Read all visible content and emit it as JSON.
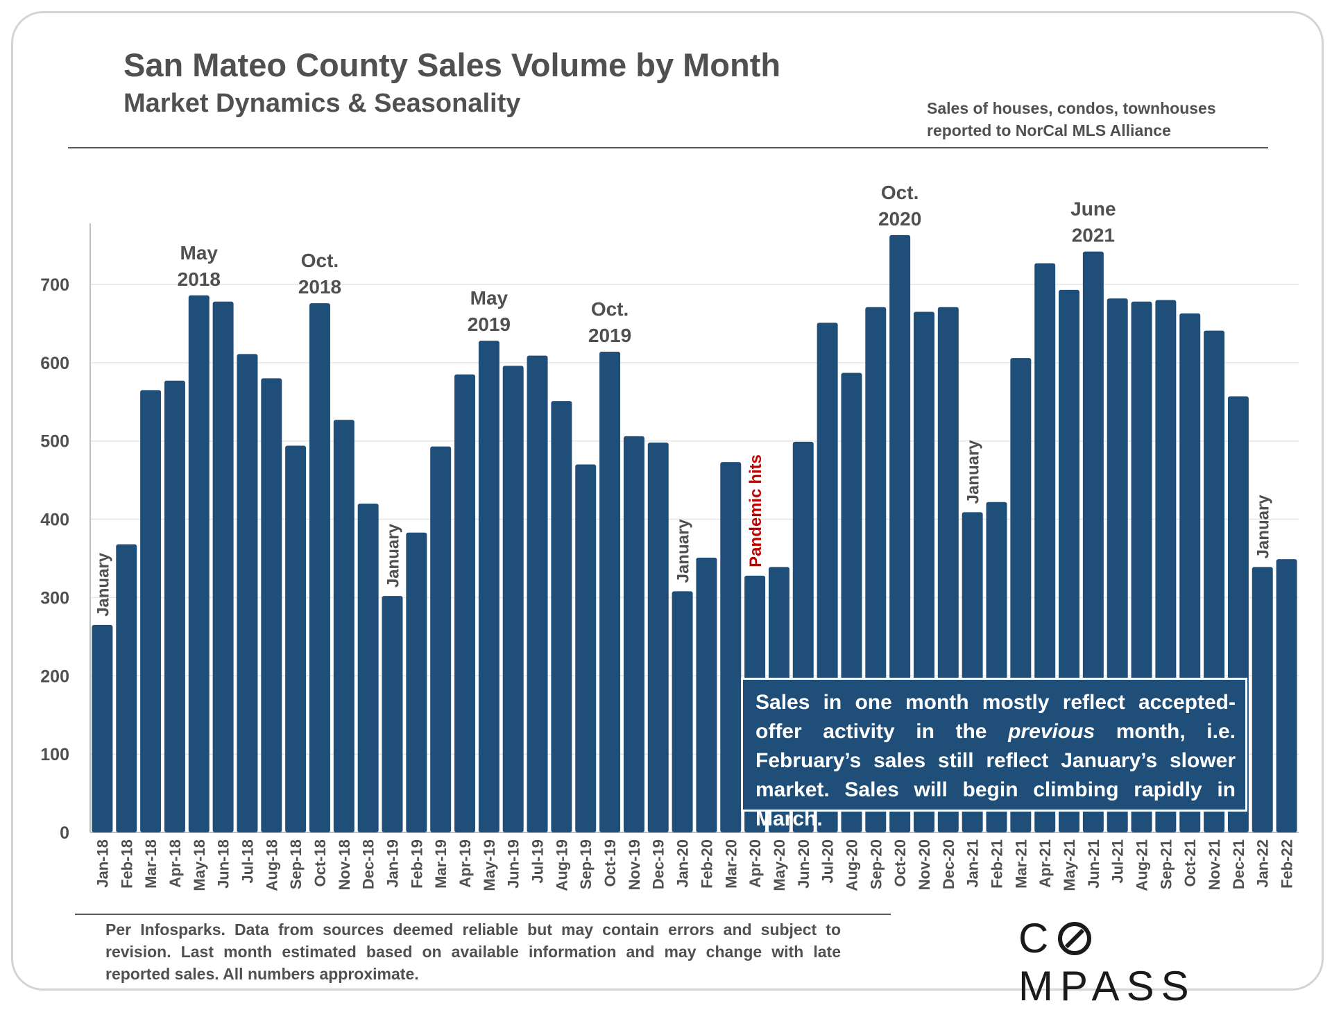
{
  "header": {
    "title": "San Mateo County Sales Volume by Month",
    "subtitle": "Market Dynamics & Seasonality",
    "source_line1": "Sales of houses, condos, townhouses",
    "source_line2": "reported to NorCal MLS Alliance"
  },
  "callout": {
    "part1": "Sales in one month mostly reflect accepted-offer activity in the ",
    "emphasis": "previous",
    "part2": " month, i.e. February’s sales still reflect January’s slower market. Sales will begin climbing rapidly in March."
  },
  "footnote": "Per Infosparks. Data from sources deemed reliable but may contain errors and subject to revision. Last month estimated based on available information and may change with late reported sales. All numbers approximate.",
  "logo": {
    "text_left": "C",
    "text_right": "MPASS"
  },
  "colors": {
    "bar": "#1f4e79",
    "text": "#505050",
    "pandemic": "#c00000"
  },
  "chart_data": {
    "type": "bar",
    "title": "San Mateo County Sales Volume by Month",
    "xlabel": "",
    "ylabel": "",
    "ylim": [
      0,
      780
    ],
    "yticks": [
      0,
      100,
      200,
      300,
      400,
      500,
      600,
      700
    ],
    "grid": true,
    "categories": [
      "Jan-18",
      "Feb-18",
      "Mar-18",
      "Apr-18",
      "May-18",
      "Jun-18",
      "Jul-18",
      "Aug-18",
      "Sep-18",
      "Oct-18",
      "Nov-18",
      "Dec-18",
      "Jan-19",
      "Feb-19",
      "Mar-19",
      "Apr-19",
      "May-19",
      "Jun-19",
      "Jul-19",
      "Aug-19",
      "Sep-19",
      "Oct-19",
      "Nov-19",
      "Dec-19",
      "Jan-20",
      "Feb-20",
      "Mar-20",
      "Apr-20",
      "May-20",
      "Jun-20",
      "Jul-20",
      "Aug-20",
      "Sep-20",
      "Oct-20",
      "Nov-20",
      "Dec-20",
      "Jan-21",
      "Feb-21",
      "Mar-21",
      "Apr-21",
      "May-21",
      "Jun-21",
      "Jul-21",
      "Aug-21",
      "Sep-21",
      "Oct-21",
      "Nov-21",
      "Dec-21",
      "Jan-22",
      "Feb-22"
    ],
    "values": [
      265,
      368,
      565,
      577,
      686,
      678,
      611,
      580,
      494,
      676,
      527,
      420,
      302,
      383,
      493,
      585,
      628,
      596,
      609,
      551,
      470,
      614,
      506,
      498,
      308,
      351,
      473,
      328,
      339,
      499,
      651,
      587,
      671,
      763,
      665,
      671,
      409,
      422,
      606,
      727,
      693,
      742,
      682,
      678,
      680,
      663,
      641,
      557,
      339,
      349
    ],
    "annotations": [
      {
        "index": 4,
        "lines": [
          "May",
          "2018"
        ],
        "color": "#505050"
      },
      {
        "index": 9,
        "lines": [
          "Oct.",
          "2018"
        ],
        "color": "#505050"
      },
      {
        "index": 16,
        "lines": [
          "May",
          "2019"
        ],
        "color": "#505050"
      },
      {
        "index": 21,
        "lines": [
          "Oct.",
          "2019"
        ],
        "color": "#505050"
      },
      {
        "index": 33,
        "lines": [
          "Oct.",
          "2020"
        ],
        "color": "#505050"
      },
      {
        "index": 41,
        "lines": [
          "June",
          "2021"
        ],
        "color": "#505050"
      }
    ],
    "vertical_labels": [
      {
        "index": 0,
        "text": "January",
        "color": "#505050"
      },
      {
        "index": 12,
        "text": "January",
        "color": "#505050"
      },
      {
        "index": 24,
        "text": "January",
        "color": "#505050"
      },
      {
        "index": 27,
        "text": "Pandemic hits",
        "color": "#c00000"
      },
      {
        "index": 36,
        "text": "January",
        "color": "#505050"
      },
      {
        "index": 48,
        "text": "January",
        "color": "#505050"
      }
    ]
  }
}
